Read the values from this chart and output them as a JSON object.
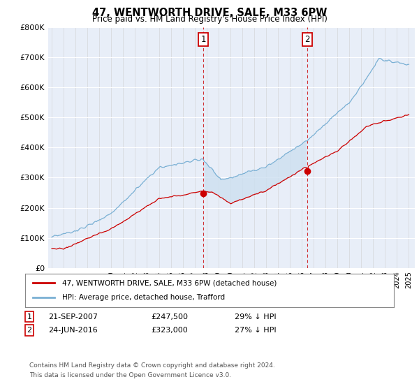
{
  "title": "47, WENTWORTH DRIVE, SALE, M33 6PW",
  "subtitle": "Price paid vs. HM Land Registry's House Price Index (HPI)",
  "ylim": [
    0,
    800000
  ],
  "yticks": [
    0,
    100000,
    200000,
    300000,
    400000,
    500000,
    600000,
    700000,
    800000
  ],
  "ytick_labels": [
    "£0",
    "£100K",
    "£200K",
    "£300K",
    "£400K",
    "£500K",
    "£600K",
    "£700K",
    "£800K"
  ],
  "hpi_color": "#7ab0d4",
  "price_color": "#cc0000",
  "fill_color": "#cde0f0",
  "background_color": "#e8eef8",
  "annotation1_year": 2007.72,
  "annotation1_price": 247500,
  "annotation2_year": 2016.47,
  "annotation2_price": 323000,
  "legend_line1": "47, WENTWORTH DRIVE, SALE, M33 6PW (detached house)",
  "legend_line2": "HPI: Average price, detached house, Trafford",
  "footer1": "Contains HM Land Registry data © Crown copyright and database right 2024.",
  "footer2": "This data is licensed under the Open Government Licence v3.0.",
  "table_row1": [
    "1",
    "21-SEP-2007",
    "£247,500",
    "29% ↓ HPI"
  ],
  "table_row2": [
    "2",
    "24-JUN-2016",
    "£323,000",
    "27% ↓ HPI"
  ]
}
